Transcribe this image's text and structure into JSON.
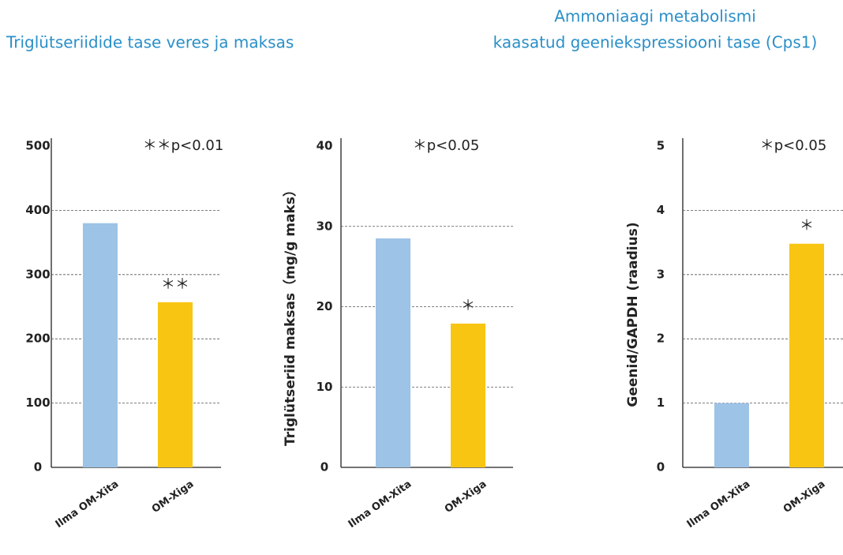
{
  "headings": [
    "Triglütseriidide tase veres ja maksas",
    "Ammoniaagi metabolismi",
    "kaasatud geeniekspressiooni tase (Cps1)"
  ],
  "chart_data": [
    {
      "type": "bar",
      "categories": [
        "Ilma OM-Xita",
        "OM-Xiga"
      ],
      "values": [
        380,
        257
      ],
      "colors": [
        "#9dc3e6",
        "#f9c513"
      ],
      "significance": [
        null,
        "＊＊"
      ],
      "annotation": "＊＊p<0.01",
      "ylim": [
        0,
        500
      ],
      "yticks": [
        0,
        100,
        200,
        300,
        400,
        500
      ],
      "grid": true
    },
    {
      "type": "bar",
      "ylabel": "Triglütseriid maksas（mg/g maks）",
      "categories": [
        "Ilma OM-Xita",
        "OM-Xiga"
      ],
      "values": [
        28.5,
        17.9
      ],
      "colors": [
        "#9dc3e6",
        "#f9c513"
      ],
      "significance": [
        null,
        "＊"
      ],
      "annotation": "＊p<0.05",
      "ylim": [
        0,
        40
      ],
      "yticks": [
        0,
        10,
        20,
        30,
        40
      ],
      "grid": true
    },
    {
      "type": "bar",
      "ylabel": "Geenid/GAPDH (raadius)",
      "categories": [
        "Ilma OM-Xita",
        "OM-Xiga"
      ],
      "values": [
        1.0,
        3.48
      ],
      "colors": [
        "#9dc3e6",
        "#f9c513"
      ],
      "significance": [
        null,
        "＊"
      ],
      "annotation": "＊p<0.05",
      "ylim": [
        0,
        5
      ],
      "yticks": [
        0,
        1,
        2,
        3,
        4,
        5
      ],
      "grid": true
    }
  ]
}
